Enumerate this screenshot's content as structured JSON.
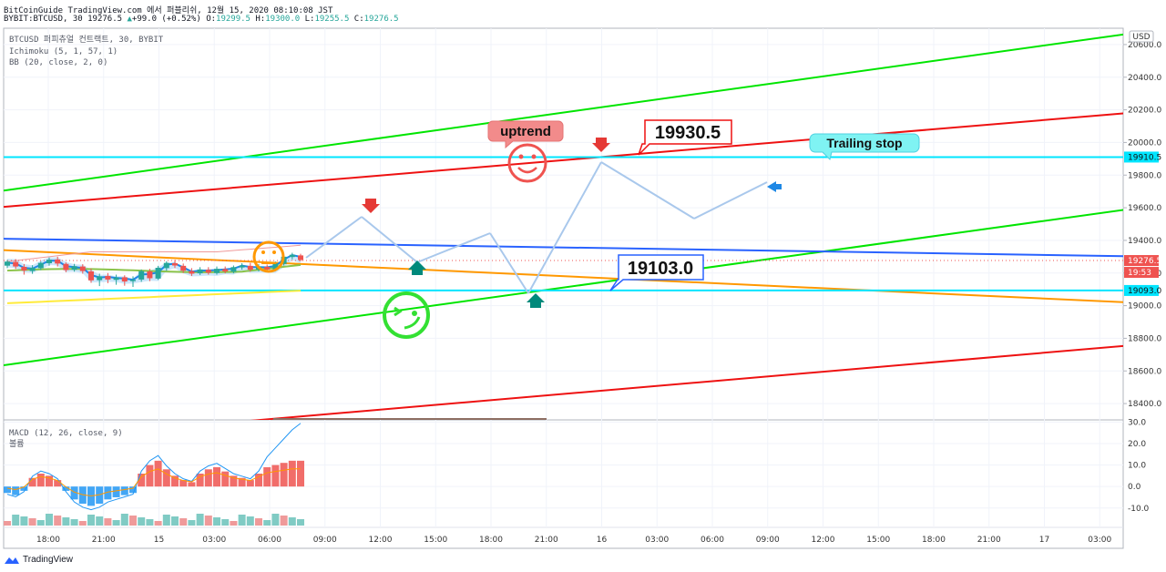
{
  "header": {
    "line1": "BitCoinGuide TradingView.com 에서 퍼블리쉬, 12월 15, 2020 08:10:08 JST",
    "symbol_prefix": "BYBIT:BTCUSD, 30",
    "price": "19276.5",
    "change": "+99.0 (+0.52%)",
    "o_label": "O:",
    "o": "19299.5",
    "h_label": "H:",
    "h": "19300.0",
    "l_label": "L:",
    "l": "19255.5",
    "c_label": "C:",
    "c": "19276.5"
  },
  "legend": {
    "title": "BTCUSD 퍼피츄얼 컨트랙트, 30, BYBIT",
    "ichimoku": "Ichimoku (5, 1, 57, 1)",
    "bb": "BB (20, close, 2, 0)",
    "macd": "MACD (12, 26, close, 9)",
    "volume": "볼륨"
  },
  "footer": {
    "brand": "TradingView"
  },
  "chart_data": {
    "type": "line",
    "currency": "USD",
    "x_ticks": [
      "18:00",
      "21:00",
      "15",
      "03:00",
      "06:00",
      "09:00",
      "12:00",
      "15:00",
      "18:00",
      "21:00",
      "16",
      "03:00",
      "06:00",
      "09:00",
      "12:00",
      "15:00",
      "18:00",
      "21:00",
      "17",
      "03:00"
    ],
    "y_ticks": [
      "20600.0",
      "20400.0",
      "20200.0",
      "20000.0",
      "19800.0",
      "19600.0",
      "19400.0",
      "19200.0",
      "19000.0",
      "18800.0",
      "18600.0",
      "18400.0"
    ],
    "ylim": [
      18300,
      20700
    ],
    "macd_ticks": [
      "30.0",
      "20.0",
      "10.0",
      "0.0",
      "-10.0"
    ],
    "macd_ylim": [
      -19,
      31
    ],
    "price_labels": {
      "last": "19276.5",
      "countdown": "19:53",
      "upper_level": "19910.5",
      "lower_level": "19093.0"
    },
    "horizontal_levels": [
      {
        "value": 19910.5,
        "color": "#00e5ff"
      },
      {
        "value": 19093.0,
        "color": "#00e5ff"
      }
    ],
    "trend_lines": [
      {
        "color": "#00e500",
        "from": [
          0,
          19705
        ],
        "to": [
          20.3,
          20665
        ]
      },
      {
        "color": "#00e500",
        "from": [
          0,
          18635
        ],
        "to": [
          20.3,
          19590
        ]
      },
      {
        "color": "#ee1111",
        "from": [
          0,
          19605
        ],
        "to": [
          20.3,
          20180
        ]
      },
      {
        "color": "#ee1111",
        "from": [
          4.3,
          18290
        ],
        "to": [
          20.3,
          18755
        ]
      },
      {
        "color": "#2962ff",
        "from": [
          0,
          19410
        ],
        "to": [
          20.3,
          19303
        ]
      },
      {
        "color": "#ff9800",
        "from": [
          0,
          19340
        ],
        "to": [
          20.3,
          19020
        ]
      }
    ],
    "candles": [
      [
        19245,
        19270,
        19230,
        19280
      ],
      [
        19268,
        19240,
        19225,
        19285
      ],
      [
        19238,
        19215,
        19190,
        19255
      ],
      [
        19212,
        19232,
        19195,
        19248
      ],
      [
        19230,
        19262,
        19218,
        19270
      ],
      [
        19260,
        19282,
        19245,
        19295
      ],
      [
        19283,
        19258,
        19240,
        19300
      ],
      [
        19256,
        19218,
        19205,
        19265
      ],
      [
        19220,
        19242,
        19208,
        19256
      ],
      [
        19240,
        19212,
        19196,
        19254
      ],
      [
        19210,
        19155,
        19140,
        19228
      ],
      [
        19156,
        19180,
        19120,
        19196
      ],
      [
        19182,
        19160,
        19138,
        19200
      ],
      [
        19158,
        19172,
        19128,
        19190
      ],
      [
        19174,
        19148,
        19122,
        19186
      ],
      [
        19150,
        19158,
        19115,
        19180
      ],
      [
        19160,
        19212,
        19146,
        19222
      ],
      [
        19210,
        19168,
        19150,
        19226
      ],
      [
        19166,
        19232,
        19158,
        19244
      ],
      [
        19230,
        19262,
        19214,
        19272
      ],
      [
        19260,
        19246,
        19230,
        19280
      ],
      [
        19244,
        19214,
        19200,
        19258
      ],
      [
        19212,
        19196,
        19182,
        19230
      ],
      [
        19198,
        19222,
        19188,
        19236
      ],
      [
        19220,
        19202,
        19190,
        19236
      ],
      [
        19200,
        19226,
        19190,
        19240
      ],
      [
        19224,
        19210,
        19198,
        19240
      ],
      [
        19208,
        19236,
        19198,
        19246
      ],
      [
        19234,
        19246,
        19220,
        19260
      ],
      [
        19244,
        19220,
        19208,
        19262
      ],
      [
        19222,
        19240,
        19210,
        19254
      ],
      [
        19238,
        19222,
        19210,
        19252
      ],
      [
        19220,
        19258,
        19212,
        19270
      ],
      [
        19256,
        19300,
        19246,
        19310
      ],
      [
        19298,
        19312,
        19284,
        19324
      ],
      [
        19308,
        19280,
        19272,
        19318
      ]
    ],
    "annotations": [
      {
        "text": "uptrend",
        "color": "#f28b8b"
      },
      {
        "text": "19930.5",
        "color": "#ee1111"
      },
      {
        "text": "Trailing stop",
        "color": "#7ff3f3"
      },
      {
        "text": "19103.0",
        "color": "#2962ff"
      }
    ]
  }
}
